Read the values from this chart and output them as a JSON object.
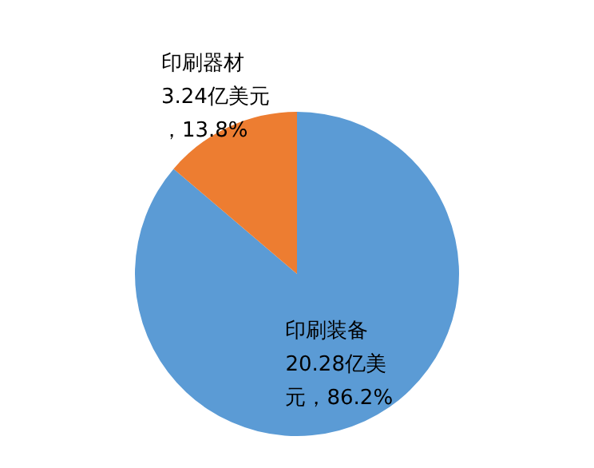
{
  "chart_data": {
    "type": "pie",
    "categories": [
      "印刷装备",
      "印刷器材"
    ],
    "values": [
      20.28,
      3.24
    ],
    "colors": [
      "#5b9bd5",
      "#ed7d31"
    ],
    "value_labels": [
      "20.28亿美元，86.2%",
      "3.24亿美元，13.8%"
    ],
    "legend": false
  }
}
